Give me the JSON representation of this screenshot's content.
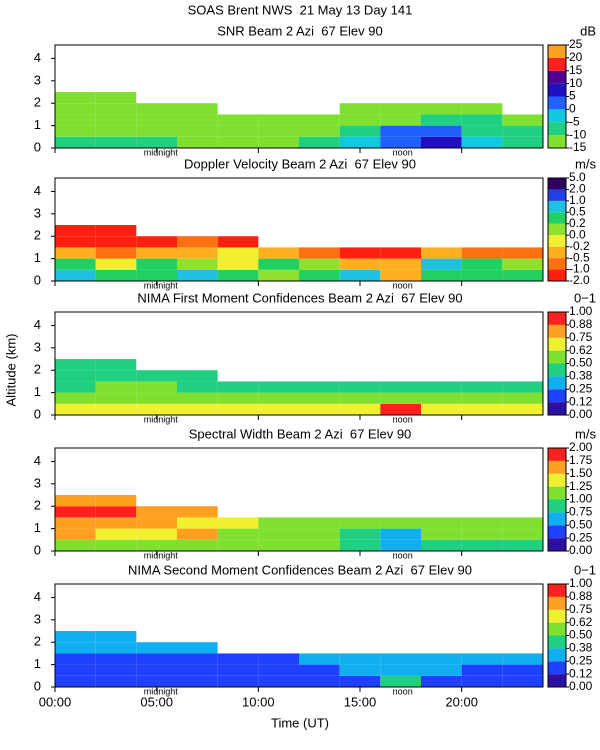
{
  "title": "SOAS Brent NWS  21 May 13 Day 141",
  "ylabel": "Altitude (km)",
  "chart_data": [
    {
      "type": "heatmap",
      "title": "SNR Beam 2 Azi  67 Elev 90",
      "colorbar_label": "dB",
      "xlim": [
        0,
        24
      ],
      "xticks": [
        {
          "value": 0,
          "label": "00:00"
        },
        {
          "value": 5,
          "label": "05:00"
        },
        {
          "value": 10,
          "label": "10:00"
        },
        {
          "value": 15,
          "label": "15:00"
        },
        {
          "value": 20,
          "label": "20:00"
        }
      ],
      "ylim": [
        0,
        4.6
      ],
      "yticks": [
        0,
        1,
        2,
        3,
        4
      ],
      "annotations": [
        {
          "text": "midnight",
          "x": 5.2
        },
        {
          "text": "noon",
          "x": 17.1
        }
      ],
      "x": [
        1,
        3,
        5,
        7,
        9,
        11,
        13,
        15,
        17,
        19,
        21,
        23
      ],
      "y": [
        0.25,
        0.75,
        1.25,
        1.75,
        2.25
      ],
      "values": [
        [
          -10,
          -10,
          -10,
          -12,
          -12,
          -12,
          -10,
          -5,
          2,
          5,
          -5,
          -10
        ],
        [
          -12,
          -12,
          -12,
          -13,
          -13,
          -13,
          -12,
          -10,
          0,
          3,
          -8,
          -10
        ],
        [
          -13,
          -13,
          -13,
          -13,
          -13,
          -13,
          -13,
          -13,
          -12,
          -10,
          -10,
          -12
        ],
        [
          -13,
          -13,
          -14,
          -14,
          null,
          null,
          null,
          -14,
          -14,
          -14,
          -14,
          null
        ],
        [
          -14,
          -14,
          null,
          null,
          null,
          null,
          null,
          null,
          null,
          null,
          null,
          null
        ]
      ],
      "colorbar_ticks": [
        -15,
        -10,
        -5,
        0,
        5,
        10,
        15,
        20,
        25
      ],
      "colors": [
        "#80e030",
        "#20d080",
        "#10c8e0",
        "#2060ff",
        "#2010c0",
        "#500090",
        "#ff2020",
        "#ffa020"
      ]
    },
    {
      "type": "heatmap",
      "title": "Doppler Velocity Beam 2 Azi  67 Elev 90",
      "colorbar_label": "m/s",
      "xlim": [
        0,
        24
      ],
      "xticks": [
        {
          "value": 0,
          "label": "00:00"
        },
        {
          "value": 5,
          "label": "05:00"
        },
        {
          "value": 10,
          "label": "10:00"
        },
        {
          "value": 15,
          "label": "15:00"
        },
        {
          "value": 20,
          "label": "20:00"
        }
      ],
      "ylim": [
        0,
        4.6
      ],
      "yticks": [
        0,
        1,
        2,
        3,
        4
      ],
      "annotations": [
        {
          "text": "midnight",
          "x": 5.2
        },
        {
          "text": "noon",
          "x": 17.1
        }
      ],
      "x": [
        1,
        3,
        5,
        7,
        9,
        11,
        13,
        15,
        17,
        19,
        21,
        23
      ],
      "y": [
        0.25,
        0.75,
        1.25,
        1.75,
        2.25
      ],
      "values": [
        [
          0.5,
          0.2,
          0.3,
          0.5,
          0.2,
          0.0,
          0.3,
          0.5,
          -0.5,
          0.2,
          0.3,
          0.2
        ],
        [
          0.2,
          -0.2,
          0.2,
          0.0,
          -0.2,
          0.2,
          0.0,
          -0.3,
          -0.5,
          0.5,
          0.2,
          0.0
        ],
        [
          -0.5,
          -1.0,
          -0.5,
          -0.5,
          -0.2,
          -0.5,
          -1.0,
          -1.5,
          -1.5,
          -0.5,
          -1.0,
          -1.0
        ],
        [
          -1.5,
          -1.5,
          -1.5,
          -1.0,
          -1.5,
          null,
          null,
          null,
          null,
          null,
          null,
          null
        ],
        [
          -1.5,
          -1.5,
          null,
          null,
          null,
          null,
          null,
          null,
          null,
          null,
          null,
          null
        ]
      ],
      "colorbar_ticks": [
        {
          "value": -2,
          "label": "-2.0"
        },
        {
          "value": -1,
          "label": "-1.0"
        },
        -0.5,
        -0.2,
        {
          "value": 0,
          "label": "0.0"
        },
        0.2,
        0.5,
        {
          "value": 1,
          "label": "1.0"
        },
        {
          "value": 2,
          "label": "2.0"
        },
        {
          "value": 5,
          "label": "5.0"
        }
      ],
      "colors": [
        "#ff2010",
        "#ff7010",
        "#ffb020",
        "#f0f030",
        "#90e030",
        "#20d060",
        "#20c0e0",
        "#2040e0",
        "#300060"
      ]
    },
    {
      "type": "heatmap",
      "title": "NIMA First Moment Confidences Beam 2 Azi  67 Elev 90",
      "colorbar_label": "0−1",
      "xlim": [
        0,
        24
      ],
      "xticks": [
        {
          "value": 0,
          "label": "00:00"
        },
        {
          "value": 5,
          "label": "05:00"
        },
        {
          "value": 10,
          "label": "10:00"
        },
        {
          "value": 15,
          "label": "15:00"
        },
        {
          "value": 20,
          "label": "20:00"
        }
      ],
      "ylim": [
        0,
        4.6
      ],
      "yticks": [
        0,
        1,
        2,
        3,
        4
      ],
      "annotations": [
        {
          "text": "midnight",
          "x": 5.2
        },
        {
          "text": "noon",
          "x": 17.1
        }
      ],
      "x": [
        1,
        3,
        5,
        7,
        9,
        11,
        13,
        15,
        17,
        19,
        21,
        23
      ],
      "y": [
        0.25,
        0.75,
        1.25,
        1.75,
        2.25
      ],
      "values": [
        [
          0.7,
          0.7,
          0.7,
          0.7,
          0.7,
          0.7,
          0.7,
          0.7,
          0.9,
          0.7,
          0.7,
          0.7
        ],
        [
          0.5,
          0.6,
          0.6,
          0.5,
          0.5,
          0.5,
          0.5,
          0.5,
          0.6,
          0.5,
          0.5,
          0.5
        ],
        [
          0.45,
          0.5,
          0.5,
          0.45,
          0.45,
          0.45,
          0.45,
          0.45,
          0.45,
          0.45,
          0.45,
          0.45
        ],
        [
          0.45,
          0.45,
          0.45,
          0.45,
          null,
          null,
          null,
          null,
          null,
          null,
          null,
          null
        ],
        [
          0.4,
          0.4,
          null,
          null,
          null,
          null,
          null,
          null,
          null,
          null,
          null,
          null
        ]
      ],
      "colorbar_ticks": [
        {
          "value": 0,
          "label": "0.00"
        },
        0.12,
        0.25,
        0.38,
        {
          "value": 0.5,
          "label": "0.50"
        },
        0.62,
        0.75,
        0.88,
        {
          "value": 1,
          "label": "1.00"
        }
      ],
      "colors": [
        "#3010a0",
        "#2040ff",
        "#10b0f0",
        "#20d080",
        "#80e030",
        "#f0f030",
        "#ffa020",
        "#ff2020"
      ]
    },
    {
      "type": "heatmap",
      "title": "Spectral Width Beam 2 Azi  67 Elev 90",
      "colorbar_label": "m/s",
      "xlim": [
        0,
        24
      ],
      "xticks": [
        {
          "value": 0,
          "label": "00:00"
        },
        {
          "value": 5,
          "label": "05:00"
        },
        {
          "value": 10,
          "label": "10:00"
        },
        {
          "value": 15,
          "label": "15:00"
        },
        {
          "value": 20,
          "label": "20:00"
        }
      ],
      "ylim": [
        0,
        4.6
      ],
      "yticks": [
        0,
        1,
        2,
        3,
        4
      ],
      "annotations": [
        {
          "text": "midnight",
          "x": 5.2
        },
        {
          "text": "noon",
          "x": 17.1
        }
      ],
      "x": [
        1,
        3,
        5,
        7,
        9,
        11,
        13,
        15,
        17,
        19,
        21,
        23
      ],
      "y": [
        0.25,
        0.75,
        1.25,
        1.75,
        2.25
      ],
      "values": [
        [
          1.2,
          1.0,
          1.0,
          1.0,
          1.0,
          1.0,
          1.0,
          0.8,
          0.6,
          0.8,
          0.9,
          0.9
        ],
        [
          1.5,
          1.3,
          1.4,
          1.5,
          1.2,
          1.0,
          1.0,
          0.9,
          0.7,
          1.0,
          1.0,
          1.0
        ],
        [
          1.7,
          1.6,
          1.7,
          1.4,
          1.3,
          1.1,
          1.0,
          1.0,
          1.0,
          1.0,
          1.1,
          1.0
        ],
        [
          1.8,
          1.8,
          1.6,
          1.5,
          null,
          null,
          null,
          null,
          null,
          null,
          null,
          null
        ],
        [
          1.5,
          1.5,
          null,
          null,
          null,
          null,
          null,
          null,
          null,
          null,
          null,
          null
        ]
      ],
      "colorbar_ticks": [
        {
          "value": 0,
          "label": "0.00"
        },
        0.25,
        {
          "value": 0.5,
          "label": "0.50"
        },
        0.75,
        {
          "value": 1,
          "label": "1.00"
        },
        1.25,
        {
          "value": 1.5,
          "label": "1.50"
        },
        1.75,
        {
          "value": 2,
          "label": "2.00"
        }
      ],
      "colors": [
        "#3010a0",
        "#2040ff",
        "#10b0f0",
        "#20d080",
        "#80e030",
        "#f0f030",
        "#ffa020",
        "#ff2020"
      ]
    },
    {
      "type": "heatmap",
      "title": "NIMA Second Moment Confidences Beam 2 Azi  67 Elev 90",
      "colorbar_label": "0−1",
      "xlabel": "Time (UT)",
      "xlim": [
        0,
        24
      ],
      "xticks": [
        {
          "value": 0,
          "label": "00:00"
        },
        {
          "value": 5,
          "label": "05:00"
        },
        {
          "value": 10,
          "label": "10:00"
        },
        {
          "value": 15,
          "label": "15:00"
        },
        {
          "value": 20,
          "label": "20:00"
        }
      ],
      "ylim": [
        0,
        4.6
      ],
      "yticks": [
        0,
        1,
        2,
        3,
        4
      ],
      "annotations": [
        {
          "text": "midnight",
          "x": 5.2
        },
        {
          "text": "noon",
          "x": 17.1
        }
      ],
      "x": [
        1,
        3,
        5,
        7,
        9,
        11,
        13,
        15,
        17,
        19,
        21,
        23
      ],
      "y": [
        0.25,
        0.75,
        1.25,
        1.75,
        2.25
      ],
      "values": [
        [
          0.15,
          0.15,
          0.15,
          0.15,
          0.15,
          0.15,
          0.2,
          0.2,
          0.45,
          0.2,
          0.2,
          0.2
        ],
        [
          0.15,
          0.15,
          0.15,
          0.15,
          0.15,
          0.15,
          0.2,
          0.25,
          0.3,
          0.25,
          0.2,
          0.2
        ],
        [
          0.2,
          0.2,
          0.2,
          0.2,
          0.2,
          0.2,
          0.25,
          0.3,
          0.3,
          0.3,
          0.3,
          0.3
        ],
        [
          0.3,
          0.3,
          0.3,
          0.3,
          null,
          null,
          null,
          null,
          null,
          null,
          null,
          null
        ],
        [
          0.3,
          0.3,
          null,
          null,
          null,
          null,
          null,
          null,
          null,
          null,
          null,
          null
        ]
      ],
      "colorbar_ticks": [
        {
          "value": 0,
          "label": "0.00"
        },
        0.12,
        0.25,
        0.38,
        {
          "value": 0.5,
          "label": "0.50"
        },
        0.62,
        0.75,
        0.88,
        {
          "value": 1,
          "label": "1.00"
        }
      ],
      "colors": [
        "#3010a0",
        "#2040ff",
        "#10b0f0",
        "#20d080",
        "#80e030",
        "#f0f030",
        "#ffa020",
        "#ff2020"
      ]
    }
  ]
}
